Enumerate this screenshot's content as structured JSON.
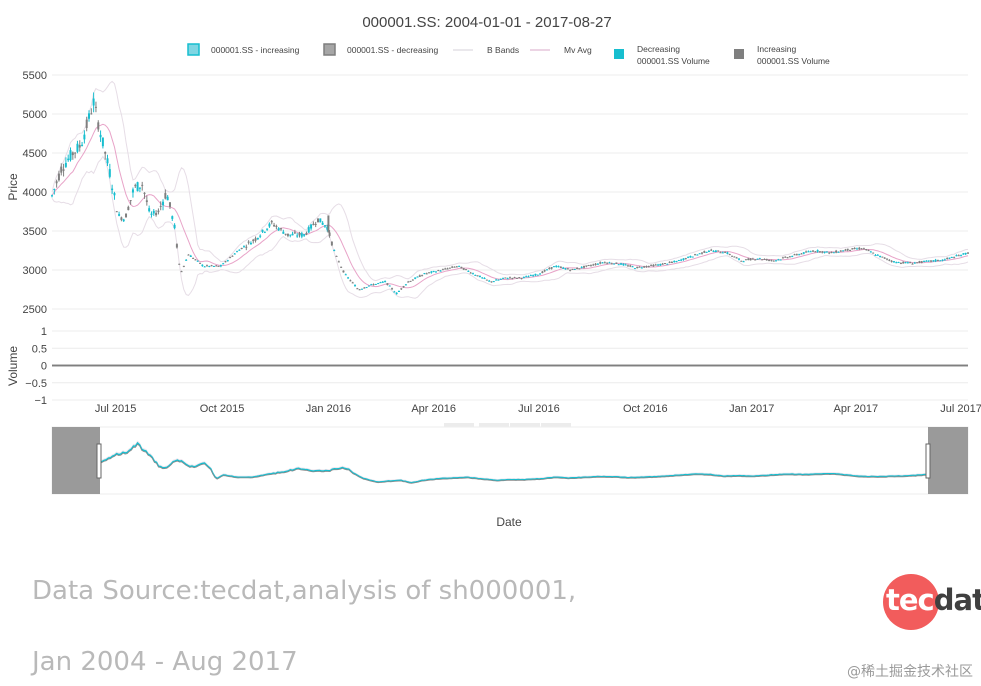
{
  "chart_data": {
    "type": "candlestick",
    "title": "000001.SS: 2004-01-01 - 2017-08-27",
    "xlabel": "Date",
    "price_axis": {
      "label": "Price",
      "ylim": [
        2500,
        5500
      ],
      "ticks": [
        "5500",
        "5000",
        "4500",
        "4000",
        "3500",
        "3000",
        "2500"
      ]
    },
    "volume_axis": {
      "label": "Volume",
      "ylim": [
        -1,
        1
      ],
      "ticks": [
        "1",
        "0.5",
        "0",
        "−0.5",
        "−1"
      ]
    },
    "x_ticks": [
      "Jul 2015",
      "Oct 2015",
      "Jan 2016",
      "Apr 2016",
      "Jul 2016",
      "Oct 2016",
      "Jan 2017",
      "Apr 2017",
      "Jul 2017"
    ],
    "x_range": [
      "2015-05-07",
      "2017-07-07"
    ],
    "legend": [
      {
        "label": "000001.SS - increasing",
        "symbol": "box",
        "color": "#7fd6e3"
      },
      {
        "label": "000001.SS - decreasing",
        "symbol": "box",
        "color": "#a6a6a6"
      },
      {
        "label": "B Bands",
        "symbol": "line",
        "color": "#d6d0da"
      },
      {
        "label": "Mv Avg",
        "symbol": "line",
        "color": "#d8a8c8"
      },
      {
        "label": "Decreasing",
        "label2": "000001.SS Volume",
        "symbol": "square",
        "color": "#17becf"
      },
      {
        "label": "Increasing",
        "label2": "000001.SS Volume",
        "symbol": "square",
        "color": "#7f7f7f"
      }
    ],
    "colors": {
      "increasing": "#17becf",
      "decreasing": "#7f7f7f",
      "bbands": "#e6dde6",
      "mvavg": "#e8a3c8"
    },
    "grid": true,
    "volume_series": "flat at 0",
    "price_series": [
      {
        "d": "2015-05-07",
        "c": 3950
      },
      {
        "d": "2015-05-15",
        "c": 4300
      },
      {
        "d": "2015-05-25",
        "c": 4500
      },
      {
        "d": "2015-06-01",
        "c": 4600
      },
      {
        "d": "2015-06-08",
        "c": 4950
      },
      {
        "d": "2015-06-12",
        "c": 5150
      },
      {
        "d": "2015-06-18",
        "c": 4750
      },
      {
        "d": "2015-06-26",
        "c": 4250
      },
      {
        "d": "2015-07-03",
        "c": 3700
      },
      {
        "d": "2015-07-09",
        "c": 3650
      },
      {
        "d": "2015-07-17",
        "c": 4050
      },
      {
        "d": "2015-07-24",
        "c": 4100
      },
      {
        "d": "2015-07-31",
        "c": 3700
      },
      {
        "d": "2015-08-07",
        "c": 3750
      },
      {
        "d": "2015-08-14",
        "c": 4000
      },
      {
        "d": "2015-08-21",
        "c": 3550
      },
      {
        "d": "2015-08-26",
        "c": 2950
      },
      {
        "d": "2015-09-02",
        "c": 3200
      },
      {
        "d": "2015-09-15",
        "c": 3050
      },
      {
        "d": "2015-09-30",
        "c": 3050
      },
      {
        "d": "2015-10-15",
        "c": 3250
      },
      {
        "d": "2015-10-30",
        "c": 3400
      },
      {
        "d": "2015-11-13",
        "c": 3600
      },
      {
        "d": "2015-11-27",
        "c": 3450
      },
      {
        "d": "2015-12-11",
        "c": 3450
      },
      {
        "d": "2015-12-23",
        "c": 3650
      },
      {
        "d": "2015-12-31",
        "c": 3550
      },
      {
        "d": "2016-01-07",
        "c": 3200
      },
      {
        "d": "2016-01-15",
        "c": 2950
      },
      {
        "d": "2016-01-27",
        "c": 2750
      },
      {
        "d": "2016-02-05",
        "c": 2800
      },
      {
        "d": "2016-02-19",
        "c": 2850
      },
      {
        "d": "2016-02-29",
        "c": 2700
      },
      {
        "d": "2016-03-10",
        "c": 2850
      },
      {
        "d": "2016-03-24",
        "c": 2950
      },
      {
        "d": "2016-04-08",
        "c": 3000
      },
      {
        "d": "2016-04-22",
        "c": 3050
      },
      {
        "d": "2016-05-06",
        "c": 2950
      },
      {
        "d": "2016-05-20",
        "c": 2850
      },
      {
        "d": "2016-06-03",
        "c": 2900
      },
      {
        "d": "2016-06-17",
        "c": 2900
      },
      {
        "d": "2016-07-01",
        "c": 2950
      },
      {
        "d": "2016-07-15",
        "c": 3050
      },
      {
        "d": "2016-07-29",
        "c": 3000
      },
      {
        "d": "2016-08-12",
        "c": 3050
      },
      {
        "d": "2016-08-26",
        "c": 3100
      },
      {
        "d": "2016-09-09",
        "c": 3080
      },
      {
        "d": "2016-09-23",
        "c": 3030
      },
      {
        "d": "2016-10-14",
        "c": 3070
      },
      {
        "d": "2016-10-28",
        "c": 3110
      },
      {
        "d": "2016-11-11",
        "c": 3180
      },
      {
        "d": "2016-11-25",
        "c": 3250
      },
      {
        "d": "2016-12-09",
        "c": 3230
      },
      {
        "d": "2016-12-23",
        "c": 3120
      },
      {
        "d": "2017-01-06",
        "c": 3150
      },
      {
        "d": "2017-01-20",
        "c": 3120
      },
      {
        "d": "2017-02-10",
        "c": 3200
      },
      {
        "d": "2017-02-24",
        "c": 3250
      },
      {
        "d": "2017-03-10",
        "c": 3220
      },
      {
        "d": "2017-03-24",
        "c": 3260
      },
      {
        "d": "2017-04-07",
        "c": 3280
      },
      {
        "d": "2017-04-21",
        "c": 3180
      },
      {
        "d": "2017-05-05",
        "c": 3100
      },
      {
        "d": "2017-05-19",
        "c": 3090
      },
      {
        "d": "2017-06-02",
        "c": 3110
      },
      {
        "d": "2017-06-16",
        "c": 3130
      },
      {
        "d": "2017-06-30",
        "c": 3190
      },
      {
        "d": "2017-07-07",
        "c": 3220
      }
    ]
  },
  "caption": {
    "line1": "Data Source:tecdat,analysis of sh000001,",
    "line2": "Jan 2004 - Aug 2017"
  },
  "logo": {
    "part1": "tec",
    "part2": "dat"
  },
  "watermark": "@稀土掘金技术社区"
}
